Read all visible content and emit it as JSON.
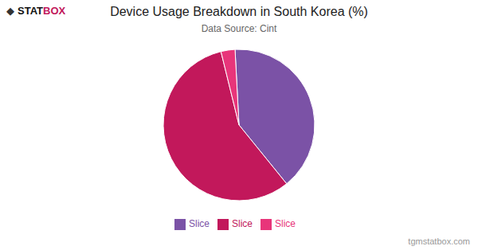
{
  "chart_data": {
    "type": "pie",
    "title": "Device Usage Breakdown in South Korea (%)",
    "subtitle": "Data Source: Cint",
    "categories": [
      "Slice",
      "Slice",
      "Slice"
    ],
    "values": [
      40,
      57,
      3
    ],
    "colors": [
      "#7B52A6",
      "#C2185B",
      "#E8357A"
    ],
    "legend": "bottom",
    "annotations": [
      "◆",
      "STAT",
      "BOX",
      "tgmstatbox.com"
    ]
  }
}
